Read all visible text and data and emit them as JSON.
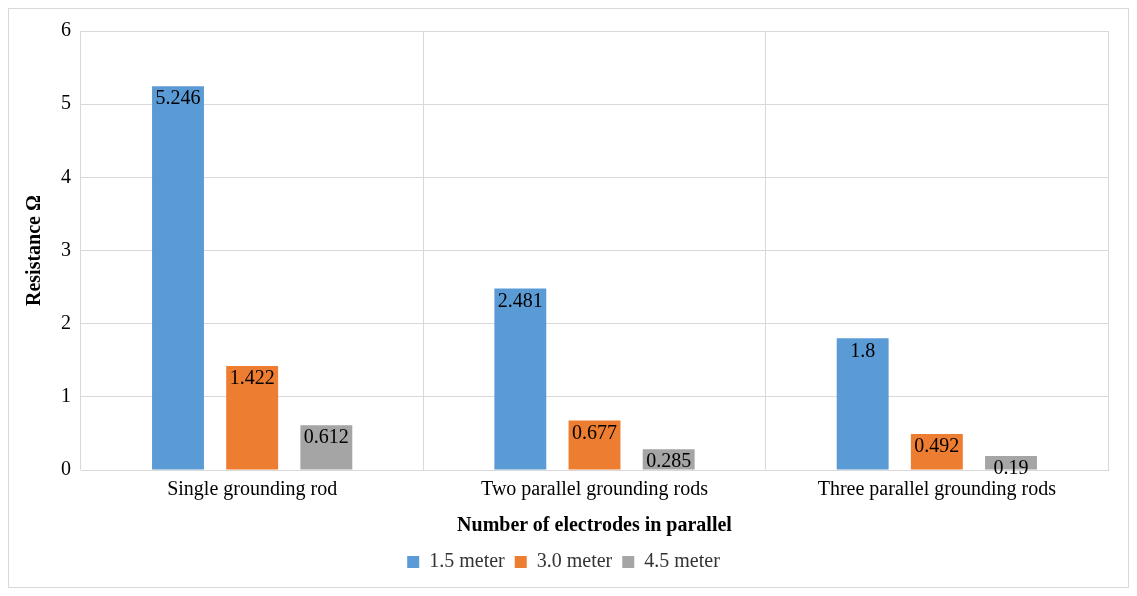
{
  "chart_data": {
    "type": "bar",
    "xlabel": "Number of electrodes in parallel",
    "ylabel": "Resistance Ω",
    "categories": [
      "Single grounding rod",
      "Two parallel grounding rods",
      "Three parallel grounding rods"
    ],
    "series": [
      {
        "name": "1.5 meter",
        "color": "#5b9bd5",
        "values": [
          5.246,
          2.481,
          1.8
        ]
      },
      {
        "name": "3.0 meter",
        "color": "#ed7d31",
        "values": [
          1.422,
          0.677,
          0.492
        ]
      },
      {
        "name": "4.5 meter",
        "color": "#a5a5a5",
        "values": [
          0.612,
          0.285,
          0.19
        ]
      }
    ],
    "ylim": [
      0,
      6
    ],
    "yticks": [
      0,
      1,
      2,
      3,
      4,
      5,
      6
    ],
    "grid": true,
    "legend": "bottom",
    "data_labels": true
  }
}
